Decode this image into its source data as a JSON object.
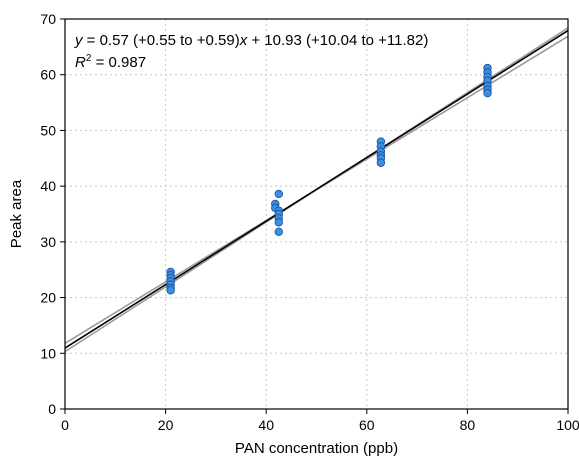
{
  "chart_data": {
    "type": "scatter",
    "xlabel": "PAN concentration (ppb)",
    "ylabel": "Peak area",
    "xlim": [
      0,
      100
    ],
    "ylim": [
      0,
      70
    ],
    "xticks": [
      "0",
      "20",
      "40",
      "60",
      "80",
      "100"
    ],
    "yticks": [
      "0",
      "10",
      "20",
      "30",
      "40",
      "50",
      "60",
      "70"
    ],
    "grid": true,
    "annotation": {
      "equation_prefix": "y",
      "equation_mid": " = 0.57 (+0.55 to +0.59)",
      "equation_var": "x",
      "equation_end": " + 10.93 (+10.04 to +11.82)",
      "r2_base": "R",
      "r2_sup": "2",
      "r2_value": " = 0.987"
    },
    "points": [
      {
        "x": 21.0,
        "y": 24.6
      },
      {
        "x": 21.0,
        "y": 24.0
      },
      {
        "x": 21.0,
        "y": 23.5
      },
      {
        "x": 21.0,
        "y": 22.9
      },
      {
        "x": 21.0,
        "y": 22.3
      },
      {
        "x": 21.0,
        "y": 21.7
      },
      {
        "x": 21.0,
        "y": 21.3
      },
      {
        "x": 41.8,
        "y": 36.8
      },
      {
        "x": 41.8,
        "y": 36.1
      },
      {
        "x": 42.5,
        "y": 38.6
      },
      {
        "x": 42.5,
        "y": 35.6
      },
      {
        "x": 42.5,
        "y": 35.0
      },
      {
        "x": 42.5,
        "y": 34.2
      },
      {
        "x": 42.5,
        "y": 33.5
      },
      {
        "x": 42.5,
        "y": 31.8
      },
      {
        "x": 62.8,
        "y": 48.0
      },
      {
        "x": 62.8,
        "y": 47.1
      },
      {
        "x": 62.8,
        "y": 46.2
      },
      {
        "x": 62.8,
        "y": 45.5
      },
      {
        "x": 62.8,
        "y": 45.0
      },
      {
        "x": 62.8,
        "y": 44.2
      },
      {
        "x": 84.0,
        "y": 61.2
      },
      {
        "x": 84.0,
        "y": 60.4
      },
      {
        "x": 84.0,
        "y": 59.6
      },
      {
        "x": 84.0,
        "y": 58.9
      },
      {
        "x": 84.0,
        "y": 58.0
      },
      {
        "x": 84.0,
        "y": 57.3
      },
      {
        "x": 84.0,
        "y": 56.7
      }
    ],
    "fit": {
      "slope": 0.57,
      "intercept": 10.93,
      "color": "#000000"
    },
    "confidence_bands": [
      {
        "x0": 0,
        "y0": 10.3,
        "x1": 100,
        "y1": 68.4
      },
      {
        "x0": 0,
        "y0": 11.8,
        "x1": 100,
        "y1": 66.9
      }
    ],
    "colors": {
      "marker_fill": "#3b8fe0",
      "marker_stroke": "#1a4f9a",
      "band": "#9a9a9a"
    }
  }
}
